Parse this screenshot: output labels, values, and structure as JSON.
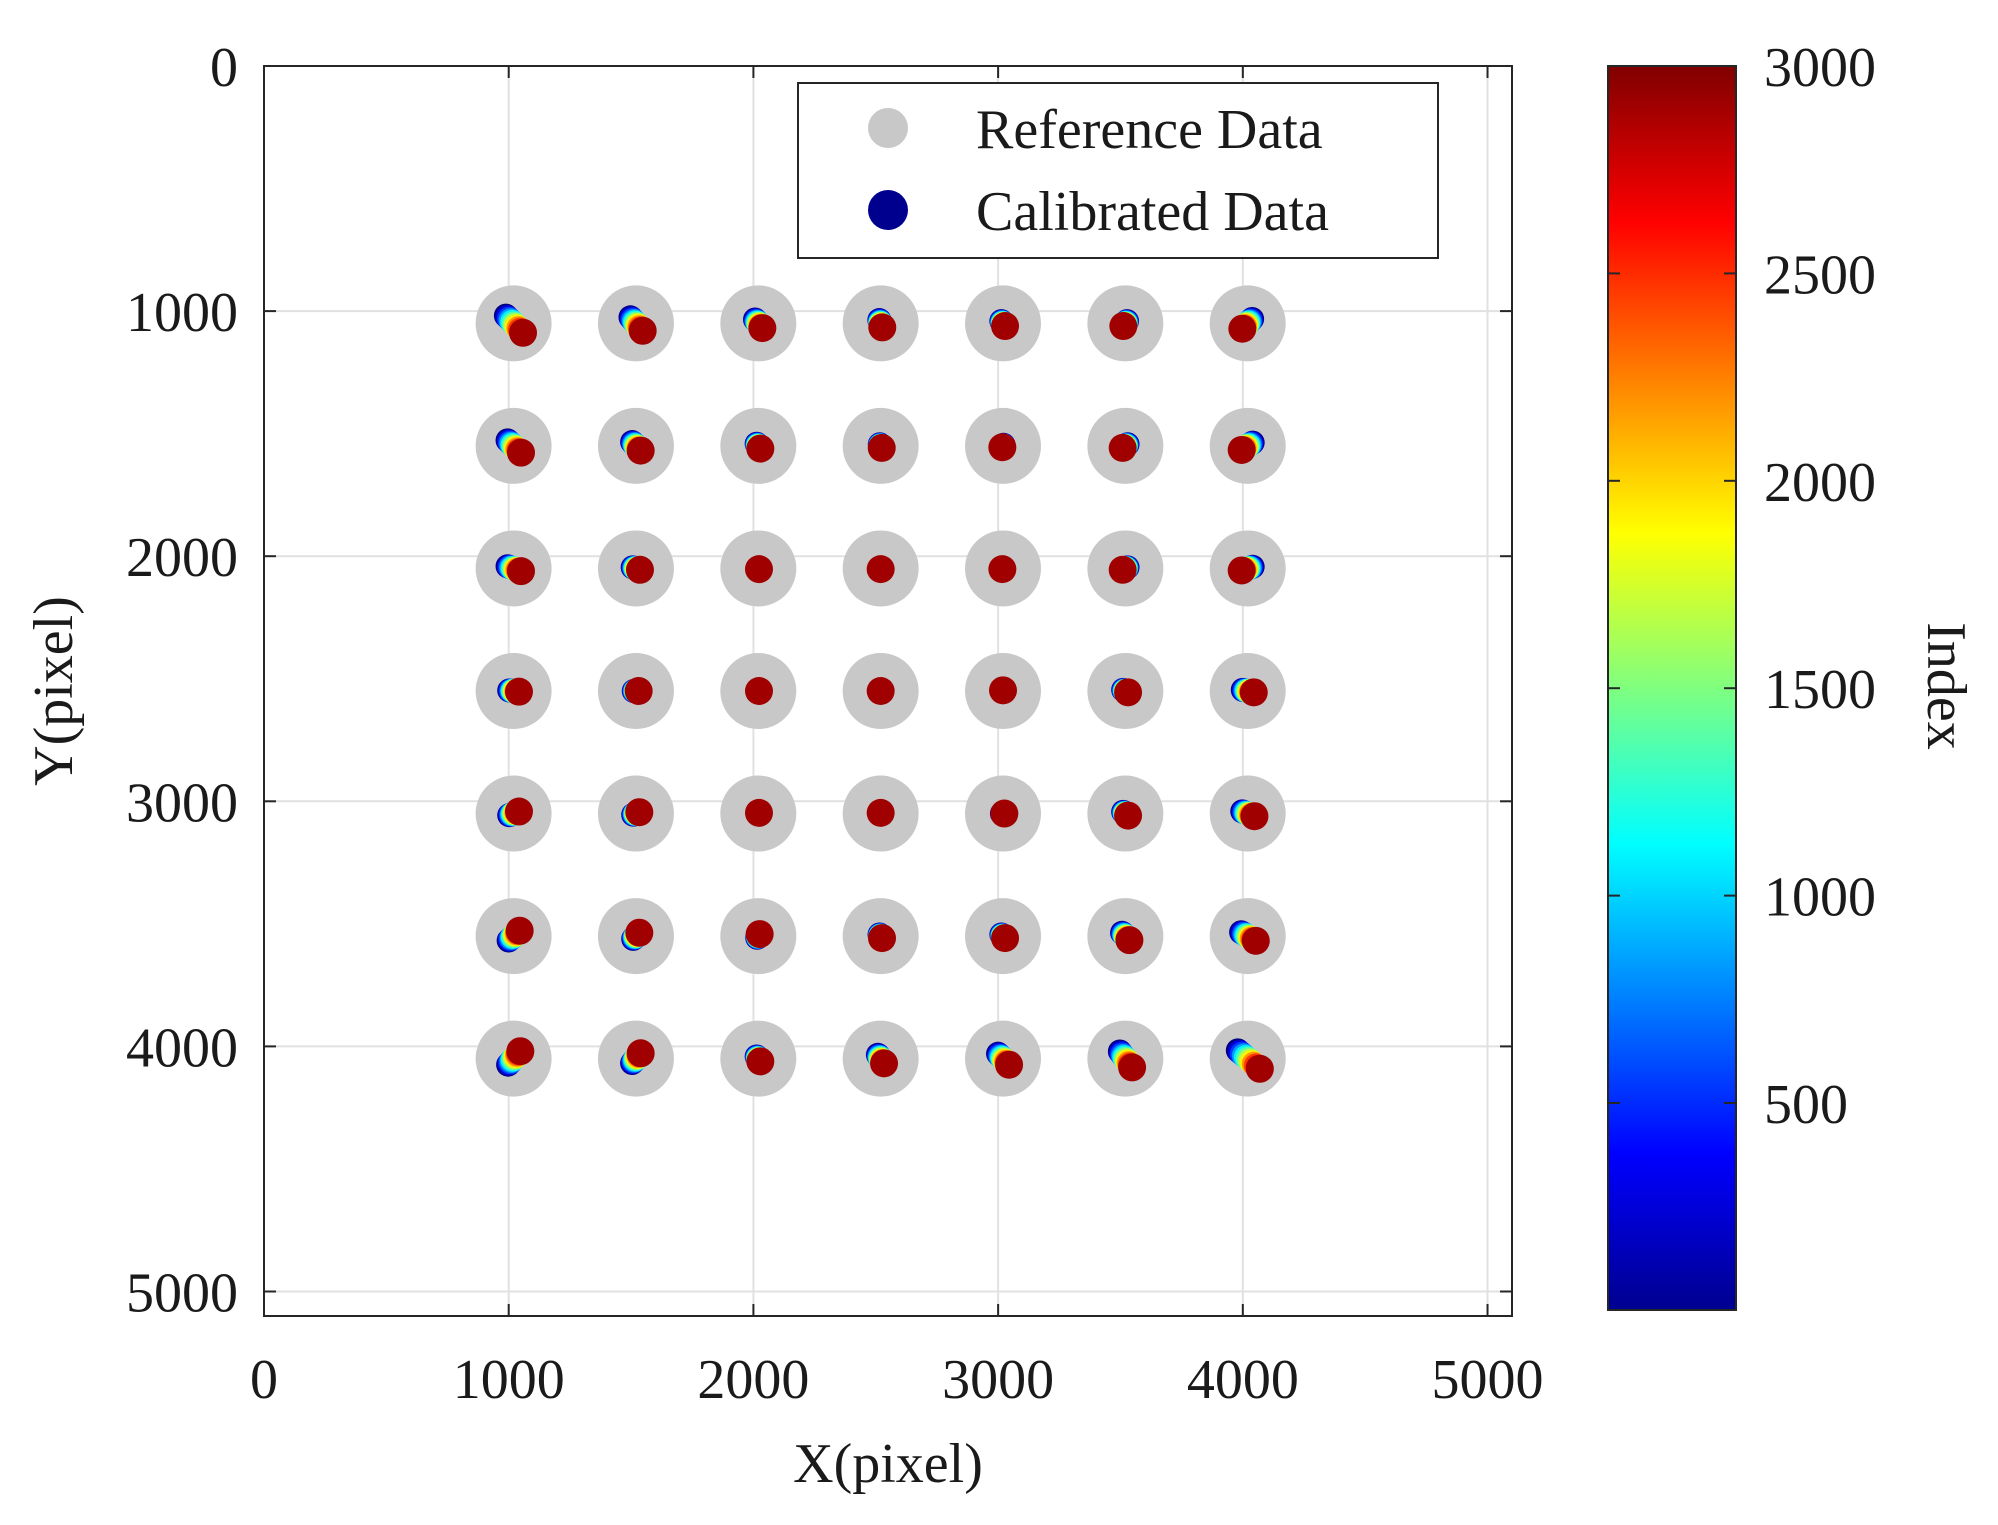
{
  "chart_data": {
    "type": "scatter",
    "title": "",
    "xlabel": "X(pixel)",
    "ylabel": "Y(pixel)",
    "xlim": [
      0,
      5100
    ],
    "ylim": [
      0,
      5100
    ],
    "y_axis_reversed": true,
    "grid": true,
    "xticks": [
      0,
      1000,
      2000,
      3000,
      4000,
      5000
    ],
    "yticks": [
      0,
      1000,
      2000,
      3000,
      4000,
      5000
    ],
    "xtick_labels": [
      "0",
      "1000",
      "2000",
      "3000",
      "4000",
      "5000"
    ],
    "ytick_labels": [
      "0",
      "1000",
      "2000",
      "3000",
      "4000",
      "5000"
    ],
    "legend": {
      "placement": "top-right",
      "entries": [
        {
          "label": "Reference Data",
          "color": "#c8c8c8"
        },
        {
          "label": "Calibrated Data",
          "color": "#00008f"
        }
      ]
    },
    "colorbar": {
      "label": "Index",
      "colormap": "jet",
      "range": [
        1,
        3000
      ],
      "ticks": [
        500,
        1000,
        1500,
        2000,
        2500,
        3000
      ],
      "tick_labels": [
        "500",
        "1000",
        "1500",
        "2000",
        "2500",
        "3000"
      ]
    },
    "reference_points": {
      "x": [
        1020,
        1520,
        2020,
        2520,
        3020,
        3520,
        4020
      ],
      "y": [
        1050,
        1550,
        2050,
        2550,
        3050,
        3550,
        4050
      ],
      "marker_color": "#c8c8c8"
    },
    "calibrated_clusters": [
      {
        "x": 1020,
        "y": 1050,
        "dx": 70,
        "dy": 70
      },
      {
        "x": 1520,
        "y": 1050,
        "dx": 50,
        "dy": 55
      },
      {
        "x": 2020,
        "y": 1050,
        "dx": 30,
        "dy": 35
      },
      {
        "x": 2520,
        "y": 1050,
        "dx": 12,
        "dy": 30
      },
      {
        "x": 3020,
        "y": 1050,
        "dx": 15,
        "dy": 20
      },
      {
        "x": 3520,
        "y": 1050,
        "dx": -15,
        "dy": 20
      },
      {
        "x": 4020,
        "y": 1050,
        "dx": -40,
        "dy": 40
      },
      {
        "x": 1020,
        "y": 1550,
        "dx": 55,
        "dy": 50
      },
      {
        "x": 1520,
        "y": 1550,
        "dx": 35,
        "dy": 35
      },
      {
        "x": 2020,
        "y": 1550,
        "dx": 15,
        "dy": 20
      },
      {
        "x": 2520,
        "y": 1550,
        "dx": 8,
        "dy": 15
      },
      {
        "x": 3020,
        "y": 1550,
        "dx": -5,
        "dy": 10
      },
      {
        "x": 3520,
        "y": 1550,
        "dx": -20,
        "dy": 15
      },
      {
        "x": 4020,
        "y": 1550,
        "dx": -45,
        "dy": 30
      },
      {
        "x": 1020,
        "y": 2050,
        "dx": 55,
        "dy": 20
      },
      {
        "x": 1520,
        "y": 2050,
        "dx": 30,
        "dy": 10
      },
      {
        "x": 2020,
        "y": 2050,
        "dx": 5,
        "dy": 5
      },
      {
        "x": 2520,
        "y": 2050,
        "dx": 0,
        "dy": 5
      },
      {
        "x": 3020,
        "y": 2050,
        "dx": -5,
        "dy": 5
      },
      {
        "x": 3520,
        "y": 2050,
        "dx": -20,
        "dy": 10
      },
      {
        "x": 4020,
        "y": 2050,
        "dx": -45,
        "dy": 15
      },
      {
        "x": 1020,
        "y": 2550,
        "dx": 40,
        "dy": 5
      },
      {
        "x": 1520,
        "y": 2550,
        "dx": 20,
        "dy": 0
      },
      {
        "x": 2020,
        "y": 2550,
        "dx": 5,
        "dy": 0
      },
      {
        "x": 2520,
        "y": 2550,
        "dx": 0,
        "dy": 0
      },
      {
        "x": 3020,
        "y": 2550,
        "dx": 0,
        "dy": -5
      },
      {
        "x": 3520,
        "y": 2550,
        "dx": 20,
        "dy": 10
      },
      {
        "x": 4020,
        "y": 2550,
        "dx": 45,
        "dy": 10
      },
      {
        "x": 1020,
        "y": 3050,
        "dx": 40,
        "dy": -15
      },
      {
        "x": 1520,
        "y": 3050,
        "dx": 25,
        "dy": -10
      },
      {
        "x": 2020,
        "y": 3050,
        "dx": 5,
        "dy": -5
      },
      {
        "x": 2520,
        "y": 3050,
        "dx": 0,
        "dy": -5
      },
      {
        "x": 3020,
        "y": 3050,
        "dx": 10,
        "dy": 0
      },
      {
        "x": 3520,
        "y": 3050,
        "dx": 20,
        "dy": 15
      },
      {
        "x": 4020,
        "y": 3050,
        "dx": 50,
        "dy": 20
      },
      {
        "x": 1020,
        "y": 3550,
        "dx": 45,
        "dy": -40
      },
      {
        "x": 1520,
        "y": 3550,
        "dx": 25,
        "dy": -25
      },
      {
        "x": 2020,
        "y": 3550,
        "dx": 10,
        "dy": -15
      },
      {
        "x": 2520,
        "y": 3550,
        "dx": 10,
        "dy": 15
      },
      {
        "x": 3020,
        "y": 3550,
        "dx": 15,
        "dy": 15
      },
      {
        "x": 3520,
        "y": 3550,
        "dx": 30,
        "dy": 30
      },
      {
        "x": 4020,
        "y": 3550,
        "dx": 60,
        "dy": 35
      },
      {
        "x": 1020,
        "y": 4050,
        "dx": 50,
        "dy": -55
      },
      {
        "x": 1520,
        "y": 4050,
        "dx": 35,
        "dy": -40
      },
      {
        "x": 2020,
        "y": 4050,
        "dx": 15,
        "dy": 20
      },
      {
        "x": 2520,
        "y": 4050,
        "dx": 25,
        "dy": 35
      },
      {
        "x": 3020,
        "y": 4050,
        "dx": 45,
        "dy": 45
      },
      {
        "x": 3520,
        "y": 4050,
        "dx": 50,
        "dy": 65
      },
      {
        "x": 4020,
        "y": 4050,
        "dx": 90,
        "dy": 75
      }
    ]
  }
}
